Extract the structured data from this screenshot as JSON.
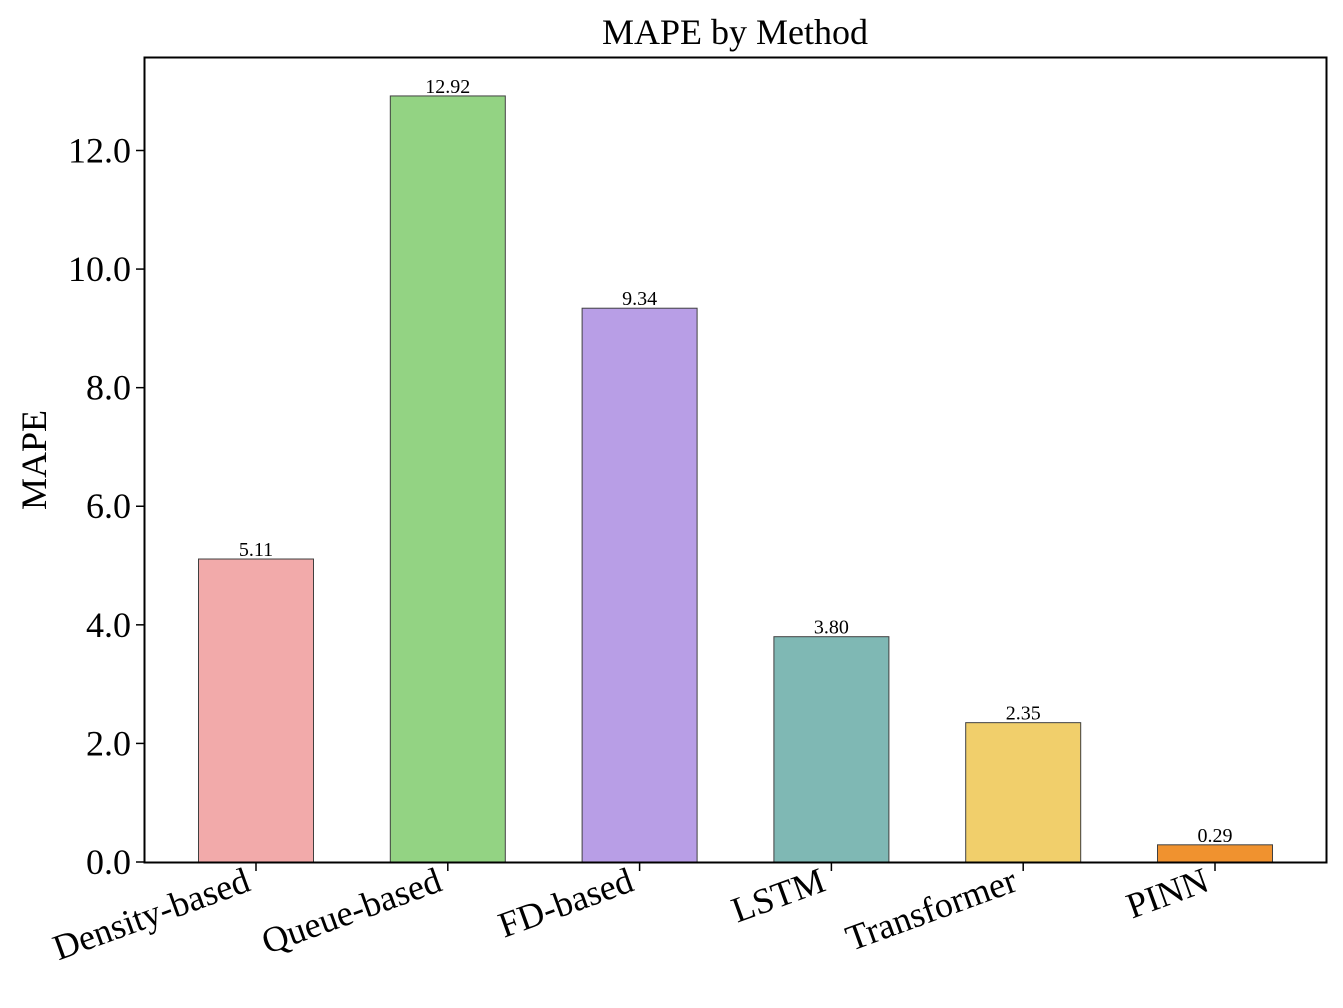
{
  "chart_data": {
    "type": "bar",
    "title": "MAPE by Method",
    "xlabel": "",
    "ylabel": "MAPE",
    "categories": [
      "Density-based",
      "Queue-based",
      "FD-based",
      "LSTM",
      "Transformer",
      "PINN"
    ],
    "values": [
      5.11,
      12.92,
      9.34,
      3.8,
      2.35,
      0.29
    ],
    "value_labels": [
      "5.11",
      "12.92",
      "9.34",
      "3.80",
      "2.35",
      "0.29"
    ],
    "ylim": [
      0,
      13.56
    ],
    "yticks": [
      0,
      2,
      4,
      6,
      8,
      10,
      12
    ],
    "ytick_labels": [
      "0.0",
      "2.0",
      "4.0",
      "6.0",
      "8.0",
      "10.0",
      "12.0"
    ],
    "grid": false,
    "colors": [
      "#f2aaaa",
      "#93d383",
      "#b89ee6",
      "#7fb8b4",
      "#f1cf6b",
      "#f0922f"
    ],
    "edge_color": "#404040"
  }
}
